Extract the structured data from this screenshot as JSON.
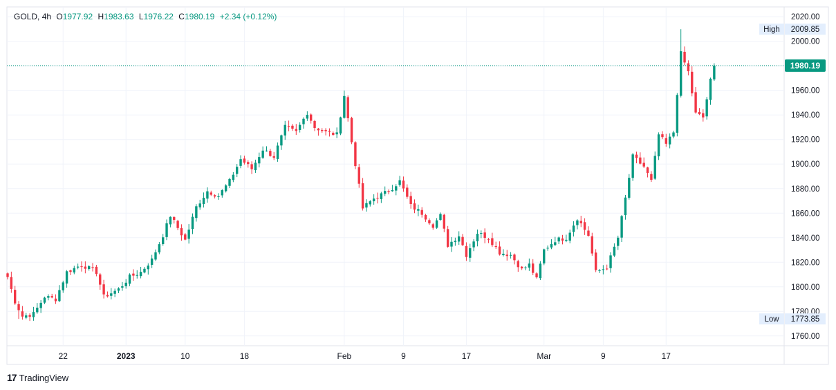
{
  "header": {
    "symbol": "GOLD",
    "interval": "4h",
    "open_label": "O",
    "open": "1977.92",
    "high_label": "H",
    "high": "1983.63",
    "low_label": "L",
    "low": "1976.22",
    "close_label": "C",
    "close": "1980.19",
    "change": "+2.34 (+0.12%)"
  },
  "branding": {
    "name": "TradingView"
  },
  "colors": {
    "up": "#089981",
    "down": "#f23645",
    "grid": "#f0f3fa",
    "axis_text": "#131722",
    "last_price_bg": "#089981",
    "hl_badge_bg": "#e3eefd"
  },
  "chart_data": {
    "type": "candlestick",
    "symbol": "GOLD",
    "interval": "4h",
    "ylim": [
      1752,
      2028
    ],
    "y_ticks": [
      1760,
      1780,
      1800,
      1820,
      1840,
      1860,
      1880,
      1900,
      1920,
      1940,
      1960,
      1980,
      2000,
      2020
    ],
    "y_tick_labels": [
      "1760.00",
      "1780.00",
      "1800.00",
      "1820.00",
      "1840.00",
      "1860.00",
      "1880.00",
      "1900.00",
      "1920.00",
      "1940.00",
      "1960.00",
      "1980.00",
      "2000.00",
      "2020.00"
    ],
    "x_labels": [
      {
        "label": "22",
        "index": 15
      },
      {
        "label": "2023",
        "index": 32
      },
      {
        "label": "10",
        "index": 48
      },
      {
        "label": "18",
        "index": 64
      },
      {
        "label": "Feb",
        "index": 91
      },
      {
        "label": "9",
        "index": 107
      },
      {
        "label": "17",
        "index": 124
      },
      {
        "label": "Mar",
        "index": 145
      },
      {
        "label": "9",
        "index": 161
      },
      {
        "label": "17",
        "index": 178
      }
    ],
    "last_price": 1980.19,
    "last_price_label": "1980.19",
    "high_label": "High",
    "high_value": 2009.85,
    "high_text": "2009.85",
    "low_label": "Low",
    "low_value": 1773.85,
    "low_text": "1773.85",
    "close_path": [
      [
        0,
        1808
      ],
      [
        2,
        1788
      ],
      [
        4,
        1776
      ],
      [
        7,
        1778
      ],
      [
        10,
        1792
      ],
      [
        13,
        1790
      ],
      [
        16,
        1812
      ],
      [
        20,
        1818
      ],
      [
        24,
        1812
      ],
      [
        26,
        1792
      ],
      [
        30,
        1798
      ],
      [
        33,
        1808
      ],
      [
        36,
        1812
      ],
      [
        39,
        1822
      ],
      [
        42,
        1842
      ],
      [
        44,
        1858
      ],
      [
        46,
        1848
      ],
      [
        48,
        1838
      ],
      [
        51,
        1865
      ],
      [
        54,
        1878
      ],
      [
        57,
        1874
      ],
      [
        60,
        1886
      ],
      [
        63,
        1904
      ],
      [
        66,
        1896
      ],
      [
        69,
        1912
      ],
      [
        72,
        1906
      ],
      [
        75,
        1930
      ],
      [
        78,
        1926
      ],
      [
        81,
        1942
      ],
      [
        83,
        1930
      ],
      [
        86,
        1926
      ],
      [
        89,
        1924
      ],
      [
        91,
        1956
      ],
      [
        93,
        1918
      ],
      [
        96,
        1864
      ],
      [
        99,
        1872
      ],
      [
        103,
        1878
      ],
      [
        106,
        1886
      ],
      [
        109,
        1866
      ],
      [
        112,
        1860
      ],
      [
        115,
        1850
      ],
      [
        117,
        1858
      ],
      [
        119,
        1834
      ],
      [
        122,
        1842
      ],
      [
        124,
        1826
      ],
      [
        127,
        1844
      ],
      [
        130,
        1840
      ],
      [
        133,
        1828
      ],
      [
        136,
        1826
      ],
      [
        139,
        1814
      ],
      [
        141,
        1818
      ],
      [
        143,
        1806
      ],
      [
        145,
        1830
      ],
      [
        148,
        1838
      ],
      [
        151,
        1840
      ],
      [
        154,
        1856
      ],
      [
        157,
        1842
      ],
      [
        159,
        1812
      ],
      [
        162,
        1816
      ],
      [
        165,
        1840
      ],
      [
        167,
        1872
      ],
      [
        169,
        1906
      ],
      [
        172,
        1898
      ],
      [
        174,
        1886
      ],
      [
        176,
        1924
      ],
      [
        178,
        1916
      ],
      [
        180,
        1926
      ],
      [
        182,
        1990
      ],
      [
        184,
        1975
      ],
      [
        186,
        1941
      ],
      [
        188,
        1938
      ],
      [
        190,
        1968
      ],
      [
        191,
        1980
      ]
    ]
  }
}
